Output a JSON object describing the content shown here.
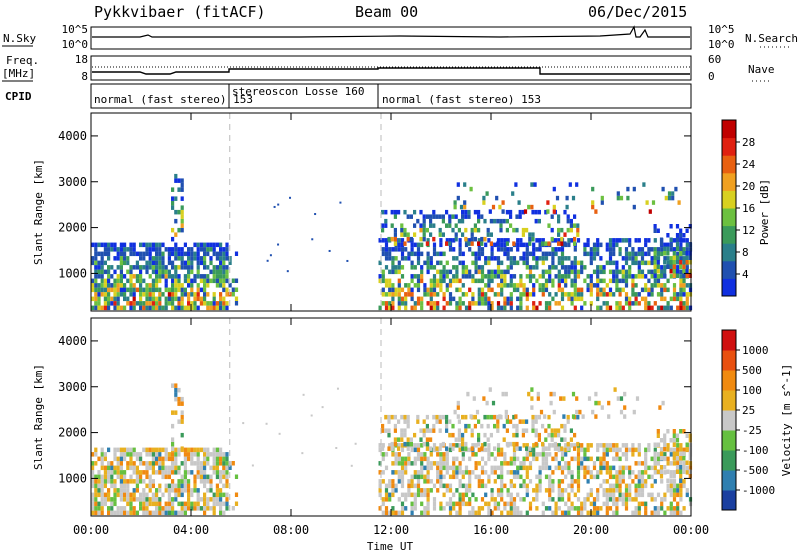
{
  "header": {
    "station": "Pykkvibaer (fitACF)",
    "beam": "Beam 00",
    "date": "06/Dec/2015"
  },
  "side_labels": {
    "nsky": "N.Sky",
    "nsearch": "N.Search",
    "freq_line1": "Freq.",
    "freq_line2": "[MHz]",
    "nave": "Nave",
    "cpid": "CPID"
  },
  "noise_axis": {
    "left_ticks": [
      "10^5",
      "10^0"
    ],
    "right_ticks": [
      "10^5",
      "10^0"
    ]
  },
  "freq_axis": {
    "left_ticks": [
      "18",
      "8"
    ],
    "right_ticks": [
      "60",
      "0"
    ]
  },
  "cpid_segments": [
    {
      "label": "normal (fast stereo) 153",
      "start_h": 0.0
    },
    {
      "label": "stereoscon Losse 160",
      "start_h": 5.55
    },
    {
      "label": "normal (fast stereo) 153",
      "start_h": 11.6
    }
  ],
  "cpid_extra": "153",
  "chart_data": [
    {
      "type": "heatmap",
      "title": "",
      "parameter": "Power",
      "ylabel": "Slant Range [km]",
      "xlabel": "Time UT",
      "xlim_hours": [
        0,
        24
      ],
      "ylim_km": [
        180,
        4500
      ],
      "x_ticks": [
        "00:00",
        "04:00",
        "08:00",
        "12:00",
        "16:00",
        "20:00",
        "00:00"
      ],
      "y_ticks": [
        "1000",
        "2000",
        "3000",
        "4000"
      ],
      "colorbar": {
        "label": "Power [dB]",
        "ticks": [
          "28",
          "24",
          "20",
          "16",
          "12",
          "8",
          "4"
        ],
        "colors": [
          "#1030e0",
          "#2050b0",
          "#2a7f8a",
          "#3a9a5a",
          "#6cc040",
          "#d8d020",
          "#f0a020",
          "#e86010",
          "#e02010",
          "#c00000"
        ]
      },
      "mode_change_hours": [
        5.55,
        11.6
      ]
    },
    {
      "type": "heatmap",
      "title": "",
      "parameter": "Velocity",
      "ylabel": "Slant Range [km]",
      "xlabel": "Time UT",
      "xlim_hours": [
        0,
        24
      ],
      "ylim_km": [
        180,
        4500
      ],
      "x_ticks": [
        "00:00",
        "04:00",
        "08:00",
        "12:00",
        "16:00",
        "20:00",
        "00:00"
      ],
      "y_ticks": [
        "1000",
        "2000",
        "3000",
        "4000"
      ],
      "colorbar": {
        "label": "Velocity [m s^-1]",
        "ticks": [
          "1000",
          "500",
          "100",
          "25",
          "-25",
          "-100",
          "-500",
          "-1000"
        ],
        "colors": [
          "#1a3fa0",
          "#2f7fb0",
          "#3a9a5a",
          "#66c040",
          "#c8c8c8",
          "#e8b020",
          "#f08a10",
          "#e85010",
          "#d01010"
        ]
      },
      "mode_change_hours": [
        5.55,
        11.6
      ]
    }
  ]
}
